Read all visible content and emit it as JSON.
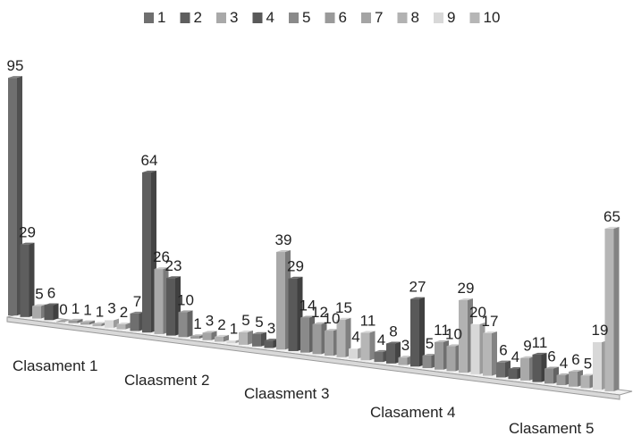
{
  "chart_data": {
    "type": "bar",
    "categories": [
      "Clasament 1",
      "Claasment 2",
      "Claasment 3",
      "Clasament 4",
      "Clasament 5"
    ],
    "series": [
      {
        "name": "1",
        "values": [
          95,
          7,
          5,
          4,
          6
        ]
      },
      {
        "name": "2",
        "values": [
          29,
          64,
          3,
          8,
          4
        ]
      },
      {
        "name": "3",
        "values": [
          5,
          26,
          39,
          3,
          9
        ]
      },
      {
        "name": "4",
        "values": [
          6,
          23,
          29,
          27,
          11
        ]
      },
      {
        "name": "5",
        "values": [
          0,
          10,
          14,
          5,
          6
        ]
      },
      {
        "name": "6",
        "values": [
          1,
          1,
          12,
          11,
          4
        ]
      },
      {
        "name": "7",
        "values": [
          1,
          3,
          10,
          10,
          6
        ]
      },
      {
        "name": "8",
        "values": [
          1,
          2,
          15,
          29,
          5
        ]
      },
      {
        "name": "9",
        "values": [
          3,
          1,
          4,
          20,
          19
        ]
      },
      {
        "name": "10",
        "values": [
          2,
          5,
          11,
          17,
          65
        ]
      }
    ],
    "legend_position": "top",
    "grid": false,
    "colors": [
      "#6f6f6f",
      "#5e5e5e",
      "#a9a9a9",
      "#595959",
      "#8a8a8a",
      "#9a9a9a",
      "#a4a4a4",
      "#b2b2b2",
      "#d8d8d8",
      "#b6b6b6"
    ]
  }
}
